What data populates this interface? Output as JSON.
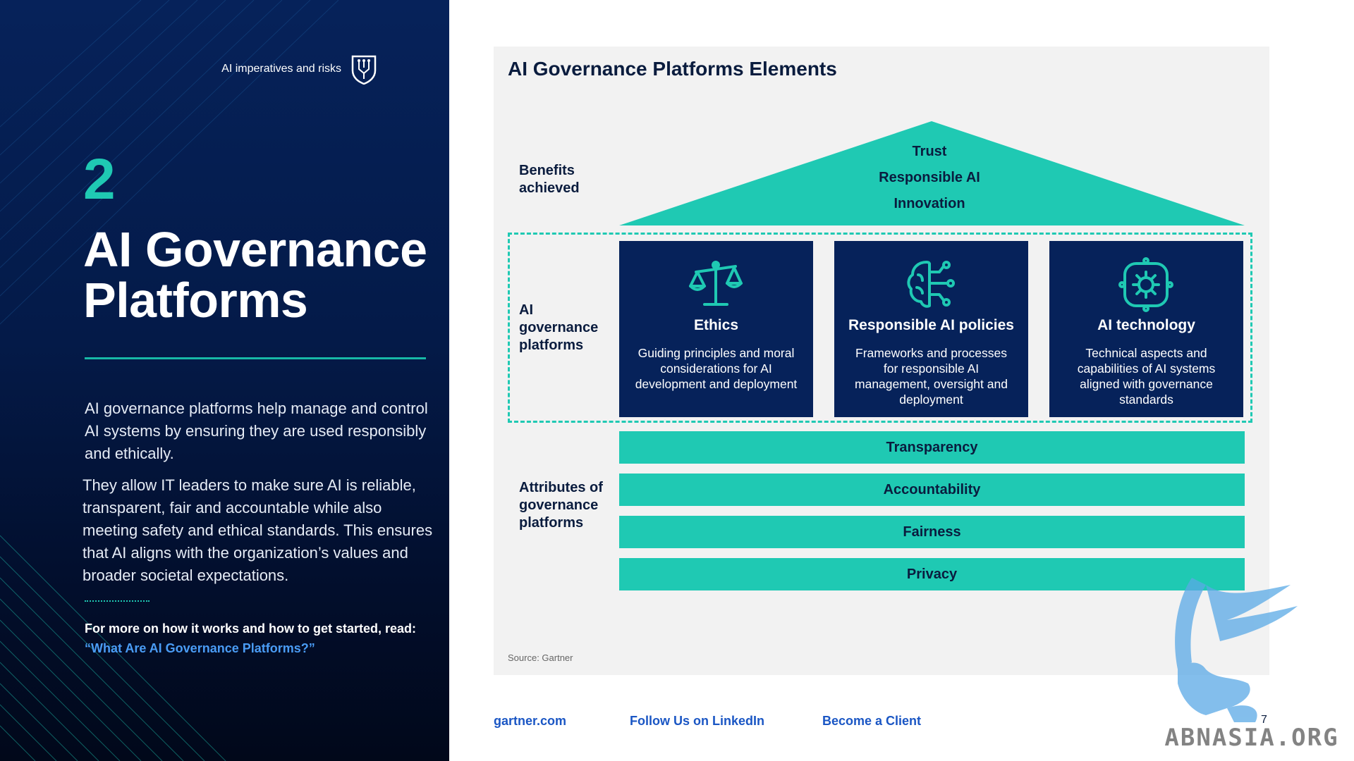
{
  "left_panel": {
    "section_tag": "AI imperatives and risks",
    "section_number": "2",
    "title": "AI Governance Platforms",
    "paragraph_1": "AI governance platforms help manage and control AI systems by ensuring they are used responsibly and ethically.",
    "paragraph_2": "They allow IT leaders to make sure AI is reliable, transparent, fair and accountable while also meeting safety and ethical standards. This ensures that AI aligns with the organization’s values and broader societal expectations.",
    "more_info_prefix": "For more on how it works and how to get started, read: ",
    "more_info_link": "“What Are AI Governance Platforms?”"
  },
  "diagram": {
    "title": "AI Governance Platforms Elements",
    "labels": {
      "benefits": "Benefits achieved",
      "platforms": "AI governance platforms",
      "attributes": "Attributes of governance platforms"
    },
    "benefits": [
      "Trust",
      "Responsible AI",
      "Innovation"
    ],
    "pillars": [
      {
        "title": "Ethics",
        "desc": "Guiding principles and moral considerations for AI development and deployment",
        "icon": "scales-icon"
      },
      {
        "title": "Responsible AI policies",
        "desc": "Frameworks and processes for responsible AI management, oversight and deployment",
        "icon": "brain-circuit-icon"
      },
      {
        "title": "AI technology",
        "desc": "Technical aspects and capabilities of AI systems aligned with governance standards",
        "icon": "gear-icon"
      }
    ],
    "attributes": [
      "Transparency",
      "Accountability",
      "Fairness",
      "Privacy"
    ],
    "source": "Source: Gartner"
  },
  "footer": {
    "link_1": "gartner.com",
    "link_2": "Follow Us on LinkedIn",
    "link_3": "Become a Client",
    "page_number": "7"
  },
  "watermark": {
    "text": "ABNASIA.ORG"
  },
  "colors": {
    "navy": "#06225a",
    "teal": "#1fc9b3",
    "link_blue": "#1a56c4",
    "card_bg": "#f2f2f2"
  }
}
